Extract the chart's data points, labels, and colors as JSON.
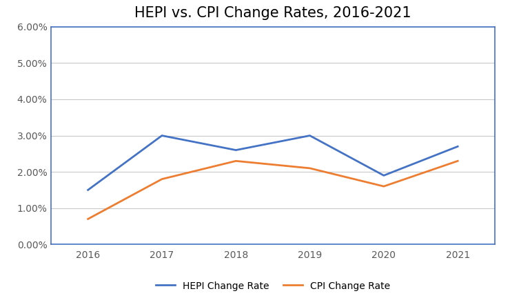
{
  "title": "HEPI vs. CPI Change Rates, 2016-2021",
  "years": [
    2016,
    2017,
    2018,
    2019,
    2020,
    2021
  ],
  "hepi": [
    0.015,
    0.03,
    0.026,
    0.03,
    0.019,
    0.027
  ],
  "cpi": [
    0.007,
    0.018,
    0.023,
    0.021,
    0.016,
    0.023
  ],
  "hepi_color": "#4472C4",
  "cpi_color": "#ED7D31",
  "hepi_label": "HEPI Change Rate",
  "cpi_label": "CPI Change Rate",
  "ylim": [
    0.0,
    0.06
  ],
  "yticks": [
    0.0,
    0.01,
    0.02,
    0.03,
    0.04,
    0.05,
    0.06
  ],
  "background_color": "#ffffff",
  "plot_bg_color": "#ffffff",
  "grid_color": "#c8c8c8",
  "spine_color": "#4472C4",
  "title_fontsize": 15,
  "tick_fontsize": 10,
  "legend_fontsize": 10,
  "line_width": 2.0
}
